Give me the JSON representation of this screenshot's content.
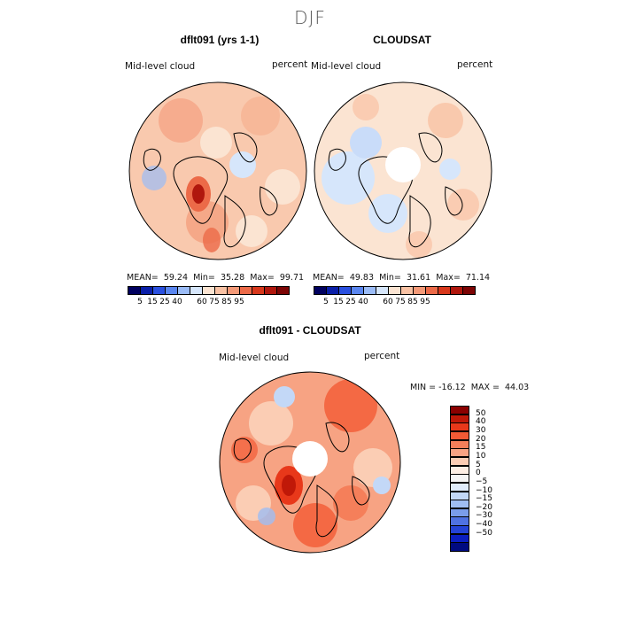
{
  "season": "DJF",
  "panels": [
    {
      "title": "dflt091 (yrs 1-1)",
      "variable": "Mid-level cloud",
      "units": "percent",
      "stats": {
        "mean_label": "MEAN=",
        "mean": "59.24",
        "min_label": "Min=",
        "min": "35.28",
        "max_label": "Max=",
        "max": "99.71"
      }
    },
    {
      "title": "CLOUDSAT",
      "variable": "Mid-level cloud",
      "units": "percent",
      "stats": {
        "mean_label": "MEAN=",
        "mean": "49.83",
        "min_label": "Min=",
        "min": "31.61",
        "max_label": "Max=",
        "max": "71.14"
      }
    },
    {
      "title": "dflt091 - CLOUDSAT",
      "variable": "Mid-level cloud",
      "units": "percent",
      "stats_text": "MIN = -16.12  MAX =  44.03"
    }
  ],
  "colorbar_top": {
    "colors": [
      "#00005f",
      "#0a1fa8",
      "#2a50e0",
      "#5a86f0",
      "#9bbcf7",
      "#d6e6fb",
      "#fbe4d2",
      "#f9c2a4",
      "#f49a78",
      "#ec6a48",
      "#d8381c",
      "#b0170d",
      "#7d0505"
    ],
    "ticks": [
      "5",
      "15",
      "25",
      "40",
      "60",
      "75",
      "85",
      "95"
    ]
  },
  "colorbar_diff": {
    "colors": [
      "#8b0000",
      "#c01808",
      "#e8381a",
      "#f25a35",
      "#f57f5a",
      "#f7a383",
      "#fbcdb4",
      "#fdeee4",
      "#f5f5f5",
      "#e0ecfb",
      "#c3d8f7",
      "#9fbdf2",
      "#7a9deb",
      "#4f72e2",
      "#2443d6",
      "#0b1ec0",
      "#000a80"
    ],
    "ticks": [
      "50",
      "40",
      "30",
      "20",
      "15",
      "10",
      "5",
      "0",
      "−5",
      "−10",
      "−15",
      "−20",
      "−30",
      "−40",
      "−50"
    ]
  }
}
